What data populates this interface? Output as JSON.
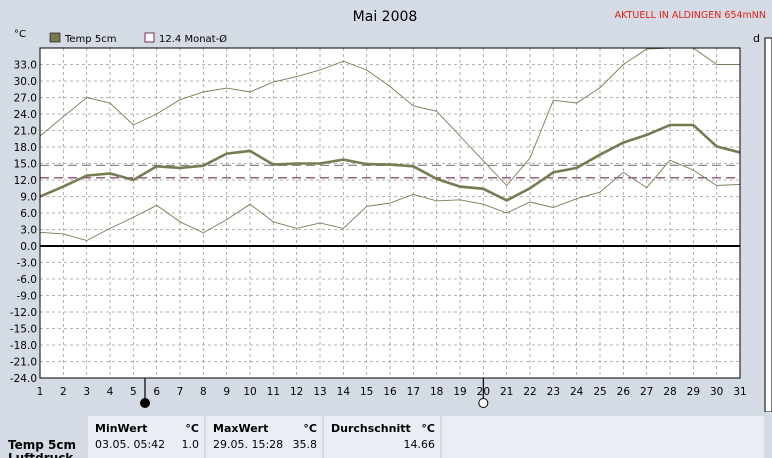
{
  "chart_data": {
    "type": "line",
    "title": "Mai 2008",
    "station_label": "AKTUELL IN ALDINGEN 654mNN",
    "y_unit": "°C",
    "y_unit_right": "d",
    "ylim": [
      -24,
      36
    ],
    "y_ticks": [
      -24.0,
      -21.0,
      -18.0,
      -15.0,
      -12.0,
      -9.0,
      -6.0,
      -3.0,
      0.0,
      3.0,
      6.0,
      9.0,
      12.0,
      15.0,
      18.0,
      21.0,
      24.0,
      27.0,
      30.0,
      33.0
    ],
    "x_ticks": [
      1,
      2,
      3,
      4,
      5,
      6,
      7,
      8,
      9,
      10,
      11,
      12,
      13,
      14,
      15,
      16,
      17,
      18,
      19,
      20,
      21,
      22,
      23,
      24,
      25,
      26,
      27,
      28,
      29,
      30,
      31
    ],
    "grid": true,
    "legend": [
      {
        "label": "Temp 5cm",
        "color": "#7a7a52"
      },
      {
        "label": "12.4 Monat-Ø",
        "color": "#7a2a5a"
      }
    ],
    "series": [
      {
        "name": "Temp 5cm",
        "color": "#7a7a52",
        "values": [
          9.0,
          10.8,
          12.8,
          13.2,
          12.0,
          14.5,
          14.2,
          14.6,
          16.8,
          17.3,
          14.8,
          15.0,
          15.0,
          15.7,
          14.9,
          14.8,
          14.5,
          12.2,
          10.8,
          10.4,
          8.3,
          10.5,
          13.4,
          14.2,
          16.6,
          18.8,
          20.2,
          22.0,
          22.0,
          18.1,
          17.0
        ]
      },
      {
        "name": "",
        "color": "#7a7a52",
        "values": [
          20.0,
          23.5,
          27.0,
          26.0,
          22.0,
          24.0,
          26.6,
          28.0,
          28.7,
          28.0,
          29.8,
          30.8,
          32.0,
          33.6,
          32.0,
          29.0,
          25.5,
          24.5,
          20.0,
          15.5,
          11.0,
          16.0,
          26.5,
          26.0,
          28.8,
          33.0,
          35.8,
          36.0,
          36.0,
          33.0,
          33.0
        ]
      },
      {
        "name": "",
        "color": "#7a7a52",
        "values": [
          2.5,
          2.2,
          1.0,
          3.2,
          5.2,
          7.4,
          4.4,
          2.4,
          4.8,
          7.6,
          4.4,
          3.2,
          4.2,
          3.2,
          7.2,
          7.8,
          9.4,
          8.2,
          8.4,
          7.6,
          6.0,
          8.0,
          7.0,
          8.6,
          9.8,
          13.4,
          10.6,
          15.6,
          13.8,
          11.0,
          11.2
        ]
      }
    ],
    "reference_lines": [
      {
        "value": 12.4,
        "color": "#7a2a5a",
        "style": "dashed"
      },
      {
        "value": 14.66,
        "color": "#8a8a8a",
        "style": "dashed"
      }
    ],
    "moon_markers": [
      {
        "day": 5.5,
        "phase": "new"
      },
      {
        "day": 20,
        "phase": "full"
      }
    ]
  },
  "summary": {
    "row_label": "Temp 5cm",
    "row_label_next": "Luftdruck",
    "min": {
      "header": "MinWert",
      "unit": "°C",
      "time": "03.05.  05:42",
      "value": "1.0"
    },
    "max": {
      "header": "MaxWert",
      "unit": "°C",
      "time": "29.05.  15:28",
      "value": "35.8"
    },
    "avg": {
      "header": "Durchschnitt",
      "unit": "°C",
      "value": "14.66"
    }
  }
}
